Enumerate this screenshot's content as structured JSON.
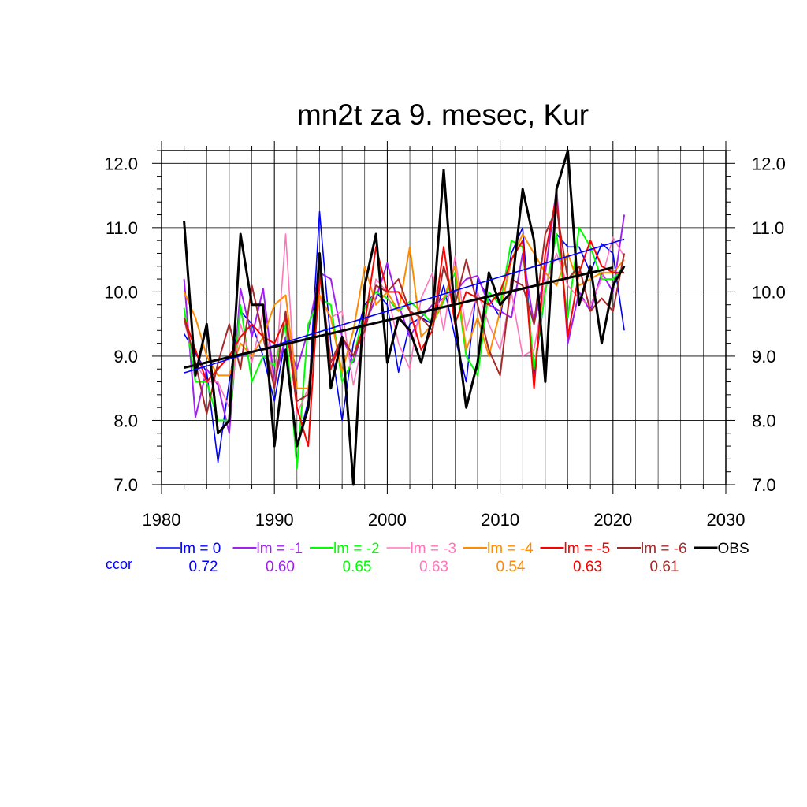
{
  "chart_data": {
    "type": "line",
    "title": "mn2t za 9. mesec, Kur",
    "xlabel": "",
    "ylabel": "",
    "xlim": [
      1980,
      2030
    ],
    "ylim": [
      7.0,
      12.2
    ],
    "x_ticks": [
      "1980",
      "1990",
      "2000",
      "2010",
      "2020",
      "2030"
    ],
    "y_ticks": [
      "7.0",
      "8.0",
      "9.0",
      "10.0",
      "11.0",
      "12.0"
    ],
    "grid": true,
    "legend_position": "bottom",
    "x": [
      1982,
      1983,
      1984,
      1985,
      1986,
      1987,
      1988,
      1989,
      1990,
      1991,
      1992,
      1993,
      1994,
      1995,
      1996,
      1997,
      1998,
      1999,
      2000,
      2001,
      2002,
      2003,
      2004,
      2005,
      2006,
      2007,
      2008,
      2009,
      2010,
      2011,
      2012,
      2013,
      2014,
      2015,
      2016,
      2017,
      2018,
      2019,
      2020,
      2021
    ],
    "series": [
      {
        "name": "lm = 0",
        "color": "#0000ff",
        "width": 1.6,
        "values": [
          9.35,
          9.05,
          8.75,
          7.35,
          8.6,
          9.7,
          9.5,
          9.0,
          8.3,
          9.3,
          7.6,
          8.3,
          11.25,
          9.2,
          8.0,
          9.2,
          9.8,
          10.0,
          9.8,
          8.75,
          9.5,
          9.6,
          9.5,
          10.1,
          9.3,
          8.6,
          10.2,
          9.9,
          9.6,
          10.6,
          11.0,
          8.7,
          10.0,
          10.9,
          10.7,
          10.7,
          10.3,
          10.75,
          10.6,
          9.4
        ]
      },
      {
        "name": "lm = -1",
        "color": "#a020f0",
        "width": 2.0,
        "values": [
          10.2,
          8.05,
          8.8,
          8.55,
          7.8,
          10.05,
          9.3,
          10.05,
          8.6,
          9.3,
          8.8,
          9.4,
          10.3,
          10.2,
          9.3,
          8.9,
          9.5,
          9.9,
          10.45,
          9.8,
          9.3,
          9.6,
          9.8,
          9.9,
          10.0,
          10.2,
          10.25,
          9.8,
          9.7,
          9.6,
          10.6,
          9.5,
          10.3,
          11.6,
          9.2,
          10.0,
          9.7,
          10.3,
          10.0,
          11.2
        ]
      },
      {
        "name": "lm = -2",
        "color": "#00ff00",
        "width": 2.0,
        "values": [
          9.75,
          8.6,
          8.6,
          8.0,
          8.0,
          9.8,
          8.6,
          9.0,
          8.85,
          9.5,
          7.25,
          9.5,
          9.9,
          9.8,
          8.6,
          8.95,
          9.75,
          10.0,
          9.9,
          9.7,
          9.85,
          9.7,
          9.5,
          9.85,
          10.3,
          9.0,
          8.7,
          10.0,
          9.8,
          10.8,
          10.7,
          8.8,
          10.0,
          10.9,
          9.6,
          11.0,
          10.7,
          10.2,
          10.2,
          10.4
        ]
      },
      {
        "name": "lm = -3",
        "color": "#ff77bb",
        "width": 1.6,
        "values": [
          9.55,
          8.9,
          8.6,
          8.6,
          8.2,
          9.5,
          8.9,
          9.7,
          8.5,
          10.9,
          8.1,
          8.5,
          9.9,
          9.6,
          9.7,
          8.55,
          9.35,
          10.2,
          10.0,
          9.2,
          8.8,
          9.9,
          10.3,
          9.4,
          10.55,
          9.4,
          10.0,
          9.5,
          9.1,
          10.0,
          9.0,
          9.1,
          10.1,
          10.6,
          10.1,
          9.9,
          9.8,
          10.2,
          10.85,
          10.55
        ]
      },
      {
        "name": "lm = -4",
        "color": "#ff8c00",
        "width": 2.0,
        "values": [
          10.0,
          9.6,
          9.0,
          8.7,
          8.7,
          9.2,
          9.0,
          9.3,
          9.8,
          9.95,
          8.5,
          8.5,
          9.95,
          9.6,
          8.75,
          9.4,
          10.4,
          9.8,
          10.0,
          9.7,
          10.7,
          9.3,
          9.5,
          9.9,
          10.4,
          9.1,
          9.6,
          9.0,
          9.7,
          10.5,
          10.9,
          10.6,
          10.3,
          10.1,
          10.6,
          10.1,
          10.2,
          10.3,
          10.3,
          10.5
        ]
      },
      {
        "name": "lm = -5",
        "color": "#ff0000",
        "width": 2.0,
        "values": [
          9.6,
          9.1,
          8.6,
          8.8,
          9.0,
          9.3,
          9.5,
          9.3,
          9.2,
          9.6,
          8.2,
          7.6,
          10.3,
          8.8,
          9.3,
          9.0,
          9.5,
          10.7,
          10.0,
          10.0,
          9.7,
          9.1,
          9.4,
          10.7,
          9.5,
          10.0,
          9.9,
          9.8,
          10.0,
          10.5,
          10.8,
          8.5,
          10.6,
          11.5,
          9.3,
          10.3,
          10.8,
          10.4,
          10.3,
          10.3
        ]
      },
      {
        "name": "lm = -6",
        "color": "#a52a2a",
        "width": 2.0,
        "values": [
          9.6,
          8.9,
          8.1,
          8.9,
          9.5,
          8.8,
          10.1,
          9.3,
          8.5,
          9.7,
          8.3,
          8.4,
          10.4,
          8.9,
          9.3,
          9.0,
          9.4,
          10.1,
          10.0,
          10.2,
          9.7,
          9.6,
          9.4,
          10.4,
          9.8,
          10.5,
          9.8,
          9.1,
          8.7,
          10.2,
          10.1,
          9.5,
          10.9,
          11.3,
          10.2,
          10.4,
          9.7,
          9.9,
          9.7,
          10.6
        ]
      },
      {
        "name": "OBS",
        "color": "#000000",
        "width": 3.0,
        "values": [
          11.1,
          8.7,
          9.5,
          7.8,
          8.0,
          10.9,
          9.8,
          9.8,
          7.6,
          9.1,
          7.6,
          8.2,
          10.6,
          8.5,
          9.3,
          7.0,
          10.1,
          10.9,
          8.9,
          9.6,
          9.4,
          8.9,
          9.6,
          11.9,
          9.6,
          8.2,
          8.9,
          10.3,
          9.8,
          10.0,
          11.6,
          10.8,
          8.6,
          11.6,
          12.2,
          9.8,
          10.4,
          9.2,
          10.1,
          10.4
        ]
      }
    ],
    "trend_lines": [
      {
        "color": "#0000ff",
        "width": 1.6,
        "x": [
          1982,
          2021
        ],
        "y": [
          8.74,
          10.82
        ]
      },
      {
        "color": "#000000",
        "width": 3.0,
        "x": [
          1982,
          2020
        ],
        "y": [
          8.82,
          10.38
        ]
      }
    ],
    "ccor_label": "ccor",
    "ccor_label_color": "#0000ff",
    "ccor_values": [
      "0.72",
      "0.60",
      "0.65",
      "0.63",
      "0.54",
      "0.63",
      "0.61"
    ]
  }
}
